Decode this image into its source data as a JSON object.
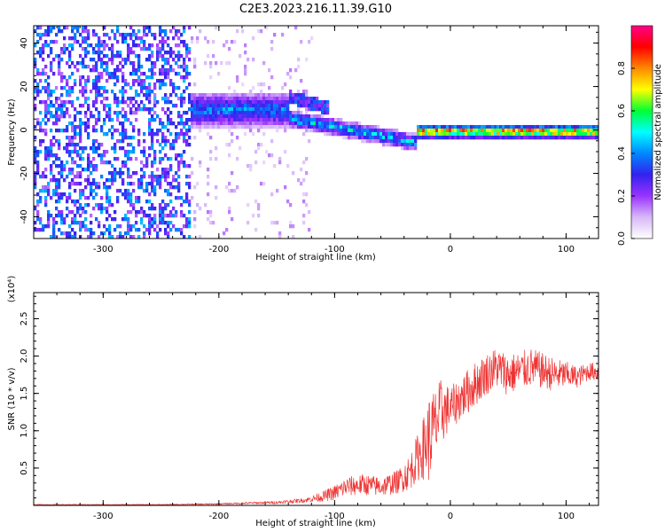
{
  "title": "C2E3.2023.216.11.39.G10",
  "chart_data": [
    {
      "type": "heatmap",
      "xlabel": "Height of straight line (km)",
      "ylabel": "Frequency (Hz)",
      "xlim": [
        -360,
        128
      ],
      "ylim": [
        -50,
        48
      ],
      "xticks": [
        -300,
        -200,
        -100,
        0,
        100
      ],
      "yticks": [
        -40,
        -20,
        0,
        20,
        40
      ],
      "colorbar": {
        "label": "Normalized spectral amplitude",
        "range": [
          0,
          1
        ],
        "ticks": [
          0.0,
          0.2,
          0.4,
          0.6,
          0.8
        ],
        "colormap": [
          "#ffffff",
          "#d8b8f8",
          "#9933ff",
          "#3322ee",
          "#0088ff",
          "#00ffff",
          "#00ff33",
          "#ffff00",
          "#ff8800",
          "#ff0000",
          "#ff0088"
        ]
      },
      "features": [
        {
          "x_range": [
            -360,
            -225
          ],
          "y_range": [
            -50,
            48
          ],
          "amplitude": 0.15,
          "kind": "broadband noise"
        },
        {
          "x_range": [
            -225,
            -140
          ],
          "y_center": 10,
          "y_width": 8,
          "amplitude": 0.45,
          "kind": "signal band"
        },
        {
          "x_range": [
            -140,
            -30
          ],
          "y_center_start": 6,
          "y_center_end": -5,
          "amplitude": 0.5,
          "kind": "descending branch"
        },
        {
          "x_range": [
            -30,
            128
          ],
          "y_center": 0,
          "y_width": 3,
          "amplitude": 0.95,
          "kind": "narrow carrier"
        }
      ]
    },
    {
      "type": "line",
      "xlabel": "Height of straight line (km)",
      "ylabel": "SNR (10 * v/v)",
      "scale_label": "(x10⁴)",
      "xlim": [
        -360,
        128
      ],
      "ylim": [
        0,
        2.85
      ],
      "xticks": [
        -300,
        -200,
        -100,
        0,
        100
      ],
      "yticks": [
        0.5,
        1.0,
        1.5,
        2.0,
        2.5
      ],
      "ytick_labels": [
        "0.5",
        "1.0",
        "1.5",
        "2.0",
        "2.5"
      ],
      "color": "#ee3333",
      "series": [
        {
          "x": [
            -360,
            -300,
            -250,
            -200,
            -150,
            -125,
            -110,
            -100,
            -90,
            -75,
            -60,
            -45,
            -35,
            -28,
            -22,
            -18,
            -12,
            -8,
            0,
            10,
            20,
            30,
            40,
            50,
            60,
            70,
            80,
            90,
            100,
            110,
            120,
            128
          ],
          "values": [
            0.01,
            0.01,
            0.01,
            0.02,
            0.04,
            0.07,
            0.12,
            0.17,
            0.25,
            0.28,
            0.25,
            0.32,
            0.45,
            0.65,
            0.8,
            0.9,
            1.1,
            1.25,
            1.3,
            1.45,
            1.6,
            1.75,
            1.85,
            1.75,
            1.8,
            1.85,
            1.8,
            1.75,
            1.75,
            1.72,
            1.8,
            1.78
          ],
          "noise": [
            0.005,
            0.005,
            0.006,
            0.01,
            0.02,
            0.03,
            0.07,
            0.1,
            0.13,
            0.14,
            0.13,
            0.16,
            0.24,
            0.32,
            0.45,
            0.6,
            0.5,
            0.45,
            0.28,
            0.3,
            0.3,
            0.28,
            0.28,
            0.28,
            0.26,
            0.26,
            0.24,
            0.22,
            0.18,
            0.14,
            0.12,
            0.12
          ]
        }
      ]
    }
  ]
}
